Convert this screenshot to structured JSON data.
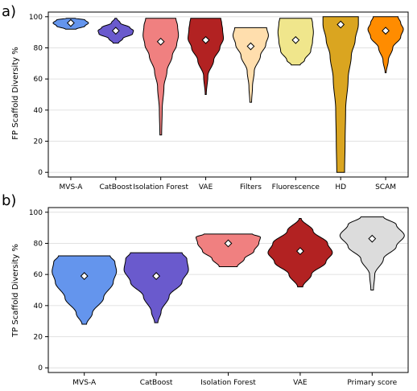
{
  "chart_data": [
    {
      "type": "violin",
      "panel_label": "a)",
      "ylabel": "FP Scaffold Diversity %",
      "ylim": [
        -3,
        103
      ],
      "yticks": [
        0,
        20,
        40,
        60,
        80,
        100
      ],
      "grid": "horizontal",
      "categories": [
        "MVS-A",
        "CatBoost",
        "Isolation Forest",
        "VAE",
        "Filters",
        "Fluorescence",
        "HD",
        "SCAM"
      ],
      "colors": [
        "#6495ED",
        "#6A5ACD",
        "#F08080",
        "#B22222",
        "#FFDEAD",
        "#F0E68C",
        "#DAA520",
        "#FF8C00"
      ],
      "violins": [
        {
          "min": 92,
          "max": 99,
          "median": 96,
          "profile": [
            [
              92,
              0.3
            ],
            [
              94,
              0.8
            ],
            [
              96,
              1.0
            ],
            [
              98,
              0.8
            ],
            [
              99,
              0.25
            ]
          ]
        },
        {
          "min": 83,
          "max": 99,
          "median": 91,
          "profile": [
            [
              83,
              0.15
            ],
            [
              86,
              0.4
            ],
            [
              89,
              0.95
            ],
            [
              91,
              1.0
            ],
            [
              93,
              0.8
            ],
            [
              96,
              0.25
            ],
            [
              99,
              0.05
            ]
          ]
        },
        {
          "min": 24,
          "max": 99,
          "median": 84,
          "profile": [
            [
              24,
              0.05
            ],
            [
              40,
              0.08
            ],
            [
              55,
              0.18
            ],
            [
              65,
              0.35
            ],
            [
              75,
              0.65
            ],
            [
              82,
              0.9
            ],
            [
              88,
              1.0
            ],
            [
              94,
              0.95
            ],
            [
              99,
              0.85
            ]
          ]
        },
        {
          "min": 50,
          "max": 99,
          "median": 85,
          "profile": [
            [
              50,
              0.03
            ],
            [
              62,
              0.12
            ],
            [
              72,
              0.45
            ],
            [
              80,
              0.8
            ],
            [
              86,
              1.0
            ],
            [
              92,
              0.95
            ],
            [
              96,
              0.9
            ],
            [
              99,
              0.85
            ]
          ]
        },
        {
          "min": 45,
          "max": 93,
          "median": 81,
          "profile": [
            [
              45,
              0.05
            ],
            [
              55,
              0.1
            ],
            [
              65,
              0.2
            ],
            [
              75,
              0.55
            ],
            [
              82,
              0.85
            ],
            [
              88,
              1.0
            ],
            [
              93,
              0.9
            ]
          ]
        },
        {
          "min": 69,
          "max": 99,
          "median": 85,
          "profile": [
            [
              69,
              0.25
            ],
            [
              72,
              0.5
            ],
            [
              78,
              0.85
            ],
            [
              84,
              0.95
            ],
            [
              90,
              1.0
            ],
            [
              96,
              0.95
            ],
            [
              99,
              0.9
            ]
          ]
        },
        {
          "min": 0,
          "max": 100,
          "median": 95,
          "profile": [
            [
              0,
              0.22
            ],
            [
              20,
              0.25
            ],
            [
              40,
              0.28
            ],
            [
              60,
              0.42
            ],
            [
              75,
              0.6
            ],
            [
              85,
              0.82
            ],
            [
              95,
              1.0
            ],
            [
              100,
              1.0
            ]
          ]
        },
        {
          "min": 64,
          "max": 100,
          "median": 91,
          "profile": [
            [
              64,
              0.03
            ],
            [
              72,
              0.15
            ],
            [
              80,
              0.4
            ],
            [
              87,
              0.85
            ],
            [
              92,
              1.0
            ],
            [
              96,
              0.85
            ],
            [
              100,
              0.7
            ]
          ]
        }
      ]
    },
    {
      "type": "violin",
      "panel_label": "b)",
      "ylabel": "TP Scaffold Diversity %",
      "ylim": [
        -3,
        103
      ],
      "yticks": [
        0,
        20,
        40,
        60,
        80,
        100
      ],
      "grid": "horizontal",
      "categories": [
        "MVS-A",
        "CatBoost",
        "Isolation Forest",
        "VAE",
        "Primary score"
      ],
      "colors": [
        "#6495ED",
        "#6A5ACD",
        "#F08080",
        "#B22222",
        "#DCDCDC"
      ],
      "violins": [
        {
          "min": 28,
          "max": 72,
          "median": 59,
          "profile": [
            [
              28,
              0.07
            ],
            [
              35,
              0.25
            ],
            [
              45,
              0.6
            ],
            [
              55,
              0.9
            ],
            [
              62,
              1.0
            ],
            [
              68,
              0.95
            ],
            [
              72,
              0.8
            ]
          ]
        },
        {
          "min": 29,
          "max": 74,
          "median": 59,
          "profile": [
            [
              29,
              0.05
            ],
            [
              36,
              0.15
            ],
            [
              46,
              0.4
            ],
            [
              55,
              0.8
            ],
            [
              63,
              1.0
            ],
            [
              70,
              0.95
            ],
            [
              74,
              0.8
            ]
          ]
        },
        {
          "min": 65,
          "max": 86,
          "median": 80,
          "profile": [
            [
              65,
              0.28
            ],
            [
              70,
              0.5
            ],
            [
              75,
              0.8
            ],
            [
              80,
              0.95
            ],
            [
              84,
              1.0
            ],
            [
              86,
              0.75
            ]
          ]
        },
        {
          "min": 52,
          "max": 96,
          "median": 75,
          "profile": [
            [
              52,
              0.08
            ],
            [
              60,
              0.35
            ],
            [
              68,
              0.8
            ],
            [
              74,
              1.0
            ],
            [
              80,
              0.85
            ],
            [
              88,
              0.4
            ],
            [
              96,
              0.03
            ]
          ]
        },
        {
          "min": 50,
          "max": 97,
          "median": 83,
          "profile": [
            [
              50,
              0.04
            ],
            [
              60,
              0.08
            ],
            [
              70,
              0.35
            ],
            [
              78,
              0.75
            ],
            [
              85,
              1.0
            ],
            [
              92,
              0.75
            ],
            [
              97,
              0.35
            ]
          ]
        }
      ]
    }
  ]
}
